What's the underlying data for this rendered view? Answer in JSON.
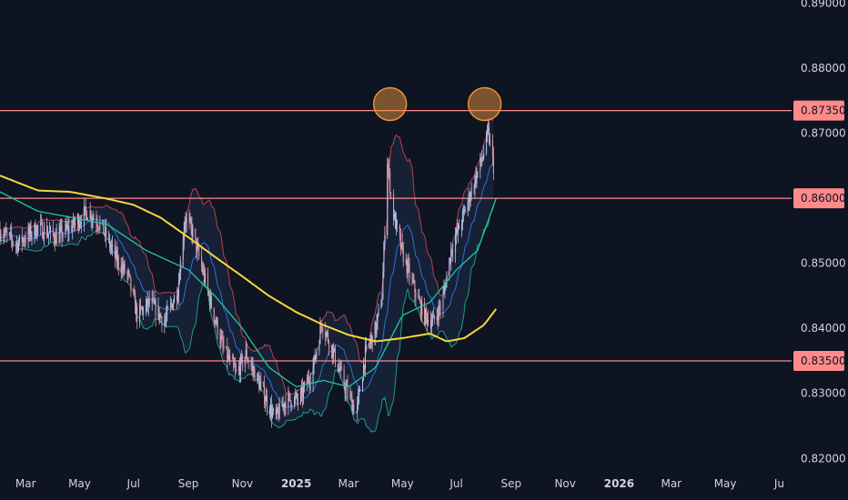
{
  "colors": {
    "background": "#0e1421",
    "candle_up": "#b5c3ea",
    "candle_down": "#e59aa5",
    "ma_long": "#f5d63d",
    "ma_mid": "#22c6a0",
    "band_basis": "#2f6fd6",
    "band_upper": "#b8414f",
    "band_lower": "#1c9c84",
    "band_fill": "#1d2c49",
    "level_line": "#ff8a8a",
    "level_label_bg": "#ff8a8a",
    "highlight_circle": "#e8913b"
  },
  "chart_data": {
    "type": "candlestick",
    "instrument_note": "",
    "x_axis": {
      "tick_labels": [
        "Mar",
        "May",
        "Jul",
        "Sep",
        "Nov",
        "2025",
        "Mar",
        "May",
        "Jul",
        "Sep",
        "Nov",
        "2026",
        "Mar",
        "May",
        "Ju"
      ],
      "bold_labels": [
        "2025",
        "2026"
      ],
      "range": [
        "2024-02-01",
        "2026-07-15"
      ]
    },
    "y_axis": {
      "tick_labels": [
        "0.89000",
        "0.88000",
        "0.87000",
        "0.85000",
        "0.84000",
        "0.83000",
        "0.82000"
      ],
      "range": [
        0.8185,
        0.8905
      ]
    },
    "horizontal_levels": [
      {
        "value": 0.8735,
        "label": "0.87350"
      },
      {
        "value": 0.86,
        "label": "0.86000"
      },
      {
        "value": 0.835,
        "label": "0.83500"
      }
    ],
    "highlights": [
      {
        "date": "2025-04-17",
        "value": 0.8745,
        "shape": "circle"
      },
      {
        "date": "2025-08-02",
        "value": 0.8745,
        "shape": "circle"
      }
    ],
    "price_path": [
      [
        "2024-02-01",
        0.855
      ],
      [
        "2024-02-20",
        0.853
      ],
      [
        "2024-03-15",
        0.8555
      ],
      [
        "2024-04-05",
        0.854
      ],
      [
        "2024-04-25",
        0.856
      ],
      [
        "2024-05-10",
        0.858
      ],
      [
        "2024-05-25",
        0.856
      ],
      [
        "2024-06-10",
        0.851
      ],
      [
        "2024-06-25",
        0.848
      ],
      [
        "2024-07-05",
        0.842
      ],
      [
        "2024-07-20",
        0.844
      ],
      [
        "2024-08-05",
        0.841
      ],
      [
        "2024-08-20",
        0.846
      ],
      [
        "2024-08-28",
        0.857
      ],
      [
        "2024-09-05",
        0.855
      ],
      [
        "2024-09-15",
        0.85
      ],
      [
        "2024-09-28",
        0.843
      ],
      [
        "2024-10-10",
        0.837
      ],
      [
        "2024-10-25",
        0.833
      ],
      [
        "2024-11-05",
        0.836
      ],
      [
        "2024-11-15",
        0.833
      ],
      [
        "2024-11-25",
        0.83
      ],
      [
        "2024-12-08",
        0.826
      ],
      [
        "2024-12-20",
        0.829
      ],
      [
        "2025-01-05",
        0.829
      ],
      [
        "2025-01-20",
        0.834
      ],
      [
        "2025-01-30",
        0.841
      ],
      [
        "2025-02-10",
        0.837
      ],
      [
        "2025-02-25",
        0.831
      ],
      [
        "2025-03-10",
        0.827
      ],
      [
        "2025-03-20",
        0.836
      ],
      [
        "2025-04-01",
        0.84
      ],
      [
        "2025-04-08",
        0.845
      ],
      [
        "2025-04-14",
        0.866
      ],
      [
        "2025-04-20",
        0.858
      ],
      [
        "2025-04-30",
        0.852
      ],
      [
        "2025-05-12",
        0.847
      ],
      [
        "2025-05-25",
        0.842
      ],
      [
        "2025-06-05",
        0.841
      ],
      [
        "2025-06-15",
        0.844
      ],
      [
        "2025-06-25",
        0.852
      ],
      [
        "2025-07-08",
        0.857
      ],
      [
        "2025-07-20",
        0.862
      ],
      [
        "2025-07-30",
        0.866
      ],
      [
        "2025-08-06",
        0.87
      ],
      [
        "2025-08-12",
        0.865
      ]
    ],
    "moving_average_long": [
      [
        "2024-02-01",
        0.8635
      ],
      [
        "2024-03-15",
        0.8612
      ],
      [
        "2024-04-20",
        0.861
      ],
      [
        "2024-05-30",
        0.86
      ],
      [
        "2024-07-01",
        0.859
      ],
      [
        "2024-08-01",
        0.857
      ],
      [
        "2024-09-01",
        0.854
      ],
      [
        "2024-10-01",
        0.851
      ],
      [
        "2024-11-01",
        0.848
      ],
      [
        "2024-12-01",
        0.845
      ],
      [
        "2025-01-01",
        0.8425
      ],
      [
        "2025-02-01",
        0.8405
      ],
      [
        "2025-03-01",
        0.839
      ],
      [
        "2025-04-01",
        0.838
      ],
      [
        "2025-05-01",
        0.8385
      ],
      [
        "2025-06-01",
        0.8392
      ],
      [
        "2025-06-20",
        0.838
      ],
      [
        "2025-07-10",
        0.8385
      ],
      [
        "2025-08-01",
        0.8405
      ],
      [
        "2025-08-15",
        0.843
      ]
    ],
    "moving_average_mid": [
      [
        "2024-02-01",
        0.861
      ],
      [
        "2024-03-15",
        0.858
      ],
      [
        "2024-04-25",
        0.857
      ],
      [
        "2024-06-01",
        0.856
      ],
      [
        "2024-07-15",
        0.852
      ],
      [
        "2024-09-01",
        0.849
      ],
      [
        "2024-10-01",
        0.845
      ],
      [
        "2024-11-01",
        0.84
      ],
      [
        "2024-12-01",
        0.834
      ],
      [
        "2025-01-01",
        0.831
      ],
      [
        "2025-02-01",
        0.832
      ],
      [
        "2025-03-01",
        0.831
      ],
      [
        "2025-04-01",
        0.834
      ],
      [
        "2025-05-01",
        0.842
      ],
      [
        "2025-06-01",
        0.844
      ],
      [
        "2025-07-01",
        0.849
      ],
      [
        "2025-07-25",
        0.852
      ],
      [
        "2025-08-15",
        0.86
      ]
    ]
  }
}
